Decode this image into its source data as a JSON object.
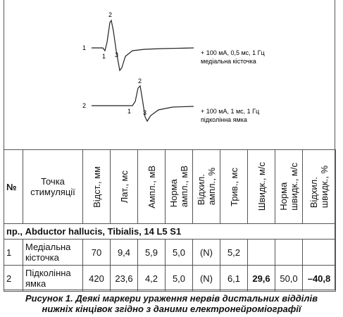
{
  "figure": {
    "traces": [
      {
        "label": "1",
        "markers": [
          "1",
          "2",
          "3"
        ],
        "stimulus": "+ 100 мА, 0,5 мс, 1 Гц",
        "site": "медіальна кісточка"
      },
      {
        "label": "2",
        "markers": [
          "1",
          "2",
          "3"
        ],
        "stimulus": "+ 100 мА, 1 мс, 1 Гц",
        "site": "підколінна ямка"
      }
    ]
  },
  "table": {
    "header": [
      [
        "№"
      ],
      [
        "Точка",
        "стимуляції"
      ],
      [
        "Відст., мм"
      ],
      [
        "Лат., мс"
      ],
      [
        "Ампл., мВ"
      ],
      [
        "Норма",
        "ампл., мВ"
      ],
      [
        "Відхил.",
        "ампл., %"
      ],
      [
        "Трив., мс"
      ],
      [
        "Швидк., м/с"
      ],
      [
        "Норма",
        "швидк., м/с"
      ],
      [
        "Відхил.",
        "швидк., %"
      ]
    ],
    "section": "пр., Abductor hallucis, Tibialis, 14 L5 S1",
    "rows": [
      [
        "1",
        "Медіальна кісточка",
        "70",
        "9,4",
        "5,9",
        "5,0",
        "(N)",
        "5,2",
        null,
        null,
        null
      ],
      [
        "2",
        "Підколінна ямка",
        "420",
        "23,6",
        "4,2",
        "5,0",
        "(N)",
        "6,1",
        "29,6",
        "50,0",
        "–40,8"
      ]
    ]
  },
  "caption": [
    "Рисунок 1. Деякі маркери ураження нервів дистальних відділів",
    "нижніх кінцівок згідно з даними електронейроміографії"
  ]
}
